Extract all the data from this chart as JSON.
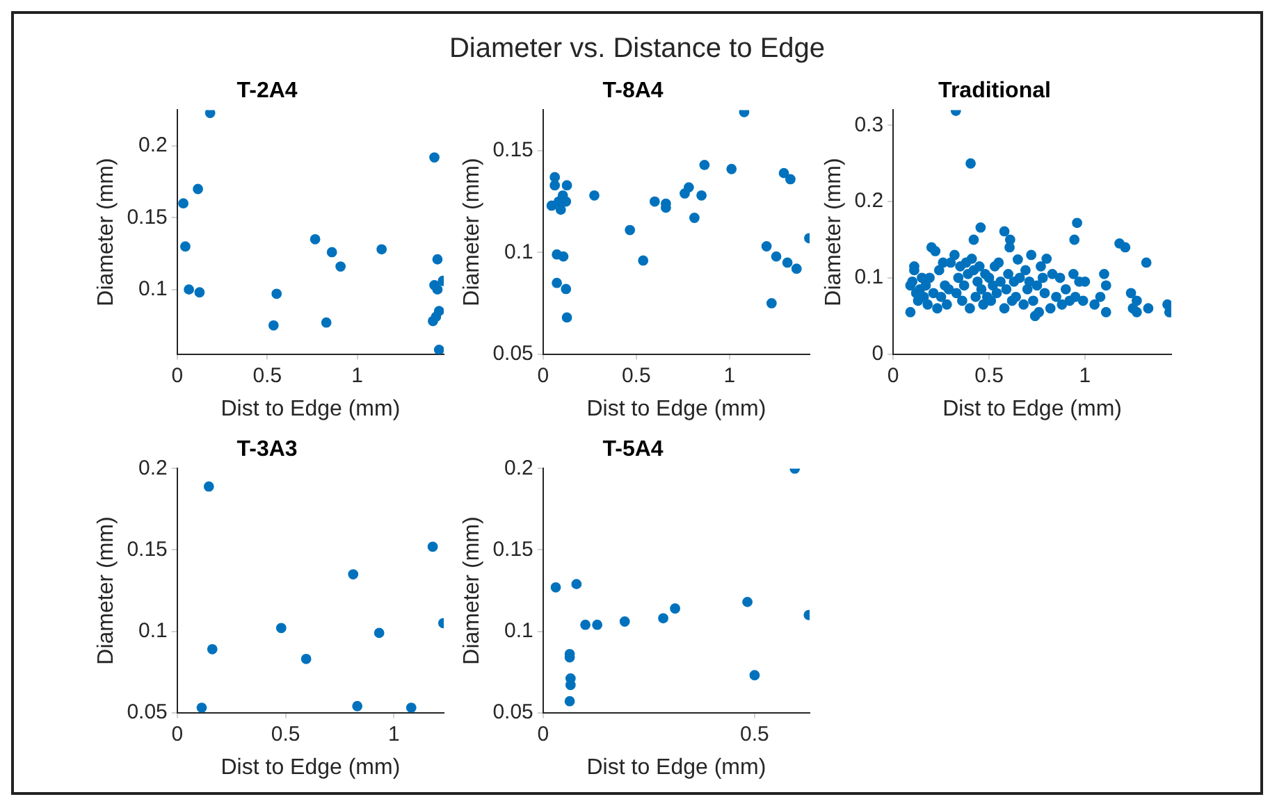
{
  "chart_data": [
    {
      "type": "scatter",
      "title": "T-2A4",
      "xlabel": "Dist to Edge (mm)",
      "ylabel": "Diameter (mm)",
      "annotations": [
        "Diameter vs. Distance to Edge"
      ],
      "color": "#0072bd",
      "marker": "circle",
      "xlim": [
        0,
        1.48
      ],
      "ylim": [
        0.055,
        0.225
      ],
      "xticks": [
        0,
        0.5,
        1
      ],
      "yticks": [
        0.1,
        0.15,
        0.2
      ],
      "x": [
        0.183,
        0.034,
        0.115,
        0.045,
        0.065,
        0.124,
        0.552,
        0.535,
        0.766,
        0.859,
        0.907,
        1.135,
        0.828,
        1.428,
        1.445,
        1.428,
        1.445,
        1.475,
        1.42,
        1.437,
        1.454,
        1.454
      ],
      "values": [
        0.223,
        0.16,
        0.17,
        0.13,
        0.1,
        0.098,
        0.097,
        0.075,
        0.135,
        0.126,
        0.116,
        0.128,
        0.077,
        0.192,
        0.121,
        0.103,
        0.1,
        0.106,
        0.078,
        0.081,
        0.085,
        0.058
      ]
    },
    {
      "type": "scatter",
      "title": "T-8A4",
      "xlabel": "Dist to Edge (mm)",
      "ylabel": "Diameter (mm)",
      "color": "#0072bd",
      "marker": "circle",
      "xlim": [
        0,
        1.43
      ],
      "ylim": [
        0.05,
        0.17
      ],
      "xticks": [
        0,
        0.5,
        1
      ],
      "yticks": [
        0.05,
        0.1,
        0.15
      ],
      "x": [
        0.063,
        0.063,
        0.046,
        0.084,
        0.106,
        0.123,
        0.095,
        0.128,
        0.074,
        0.109,
        0.074,
        0.123,
        0.128,
        0.275,
        0.466,
        0.537,
        0.599,
        0.659,
        0.659,
        0.76,
        0.782,
        0.812,
        0.85,
        0.866,
        1.011,
        1.079,
        1.199,
        1.251,
        1.226,
        1.292,
        1.327,
        1.311,
        1.36,
        1.428
      ],
      "values": [
        0.137,
        0.133,
        0.123,
        0.125,
        0.128,
        0.125,
        0.121,
        0.133,
        0.099,
        0.098,
        0.085,
        0.082,
        0.068,
        0.128,
        0.111,
        0.096,
        0.125,
        0.124,
        0.122,
        0.129,
        0.132,
        0.117,
        0.128,
        0.143,
        0.141,
        0.169,
        0.103,
        0.098,
        0.075,
        0.139,
        0.136,
        0.095,
        0.092,
        0.107
      ]
    },
    {
      "type": "scatter",
      "title": "Traditional",
      "xlabel": "Dist to Edge (mm)",
      "ylabel": "Diameter (mm)",
      "color": "#0072bd",
      "marker": "circle",
      "xlim": [
        0,
        1.45
      ],
      "ylim": [
        0,
        0.32
      ],
      "xticks": [
        0,
        0.5,
        1
      ],
      "yticks": [
        0,
        0.1,
        0.2,
        0.3
      ],
      "x": [
        0.327,
        0.404,
        0.456,
        0.42,
        0.959,
        0.945,
        0.58,
        0.61,
        0.607,
        1.18,
        1.21,
        0.09,
        0.09,
        0.1,
        0.11,
        0.11,
        0.12,
        0.13,
        0.14,
        0.15,
        0.16,
        0.17,
        0.18,
        0.19,
        0.2,
        0.21,
        0.22,
        0.23,
        0.24,
        0.25,
        0.26,
        0.27,
        0.28,
        0.29,
        0.3,
        0.32,
        0.33,
        0.34,
        0.35,
        0.36,
        0.37,
        0.38,
        0.39,
        0.4,
        0.41,
        0.42,
        0.43,
        0.44,
        0.45,
        0.46,
        0.47,
        0.48,
        0.49,
        0.5,
        0.51,
        0.52,
        0.53,
        0.54,
        0.55,
        0.56,
        0.58,
        0.59,
        0.6,
        0.62,
        0.63,
        0.64,
        0.65,
        0.66,
        0.68,
        0.69,
        0.7,
        0.71,
        0.72,
        0.73,
        0.74,
        0.75,
        0.76,
        0.77,
        0.78,
        0.79,
        0.8,
        0.82,
        0.83,
        0.85,
        0.87,
        0.88,
        0.9,
        0.92,
        0.94,
        0.95,
        0.97,
        0.99,
        1.0,
        1.05,
        1.08,
        1.1,
        1.11,
        1.11,
        1.24,
        1.25,
        1.27,
        1.27,
        1.32,
        1.33,
        1.43,
        1.44
      ],
      "values": [
        0.319,
        0.25,
        0.166,
        0.15,
        0.172,
        0.15,
        0.161,
        0.15,
        0.14,
        0.145,
        0.14,
        0.055,
        0.09,
        0.095,
        0.115,
        0.11,
        0.08,
        0.07,
        0.085,
        0.1,
        0.075,
        0.09,
        0.065,
        0.1,
        0.14,
        0.08,
        0.135,
        0.06,
        0.11,
        0.075,
        0.12,
        0.09,
        0.065,
        0.085,
        0.12,
        0.13,
        0.08,
        0.1,
        0.115,
        0.07,
        0.09,
        0.12,
        0.105,
        0.06,
        0.125,
        0.11,
        0.075,
        0.095,
        0.115,
        0.085,
        0.065,
        0.105,
        0.075,
        0.1,
        0.07,
        0.09,
        0.115,
        0.08,
        0.12,
        0.095,
        0.06,
        0.085,
        0.105,
        0.07,
        0.095,
        0.075,
        0.124,
        0.1,
        0.065,
        0.11,
        0.085,
        0.095,
        0.13,
        0.07,
        0.05,
        0.09,
        0.055,
        0.115,
        0.1,
        0.08,
        0.125,
        0.06,
        0.105,
        0.075,
        0.1,
        0.065,
        0.085,
        0.07,
        0.105,
        0.075,
        0.095,
        0.07,
        0.095,
        0.065,
        0.075,
        0.105,
        0.09,
        0.055,
        0.08,
        0.06,
        0.055,
        0.07,
        0.12,
        0.06,
        0.065,
        0.055
      ]
    },
    {
      "type": "scatter",
      "title": "T-3A3",
      "xlabel": "Dist to Edge (mm)",
      "ylabel": "Diameter (mm)",
      "color": "#0072bd",
      "marker": "circle",
      "xlim": [
        0,
        1.23
      ],
      "ylim": [
        0.05,
        0.2
      ],
      "xticks": [
        0,
        0.5,
        1
      ],
      "yticks": [
        0.05,
        0.1,
        0.15,
        0.2
      ],
      "x": [
        0.146,
        0.162,
        0.113,
        0.48,
        0.595,
        0.812,
        0.831,
        0.932,
        1.08,
        1.179,
        1.228
      ],
      "values": [
        0.189,
        0.089,
        0.053,
        0.102,
        0.083,
        0.135,
        0.054,
        0.099,
        0.053,
        0.152,
        0.105
      ]
    },
    {
      "type": "scatter",
      "title": "T-5A4",
      "xlabel": "Dist to Edge (mm)",
      "ylabel": "Diameter (mm)",
      "color": "#0072bd",
      "marker": "circle",
      "xlim": [
        0,
        0.63
      ],
      "ylim": [
        0.05,
        0.2
      ],
      "xticks": [
        0,
        0.5
      ],
      "yticks": [
        0.05,
        0.1,
        0.15,
        0.2
      ],
      "x": [
        0.03,
        0.079,
        0.1,
        0.128,
        0.193,
        0.284,
        0.312,
        0.483,
        0.5,
        0.595,
        0.628,
        0.063,
        0.063,
        0.065,
        0.065,
        0.063
      ],
      "values": [
        0.127,
        0.129,
        0.104,
        0.104,
        0.106,
        0.108,
        0.114,
        0.118,
        0.073,
        0.2,
        0.11,
        0.086,
        0.084,
        0.071,
        0.067,
        0.057
      ]
    }
  ]
}
